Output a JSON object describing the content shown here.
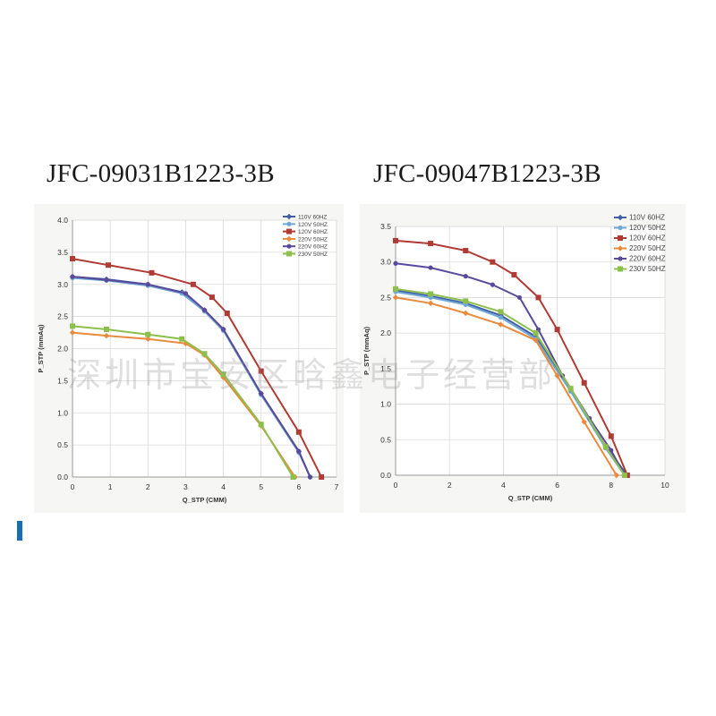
{
  "watermark": "深圳市宝安区晗鑫电子经营部",
  "chart_data": [
    {
      "type": "line",
      "title": "JFC-09031B1223-3B",
      "xlabel": "Q_STP (CMM)",
      "ylabel": "P_STP (mmAq)",
      "xlim": [
        0,
        7
      ],
      "ylim": [
        0,
        4
      ],
      "xticks": [
        0,
        1,
        2,
        3,
        4,
        5,
        6,
        7
      ],
      "yticks": [
        0.0,
        0.5,
        1.0,
        1.5,
        2.0,
        2.5,
        3.0,
        3.5,
        4.0
      ],
      "grid": true,
      "legend_position": "top-right",
      "series": [
        {
          "name": "110V 60HZ",
          "color": "#3f5ea8",
          "x": [
            0,
            0.9,
            2.0,
            2.9,
            3.5,
            4.0,
            5.0,
            6.0,
            6.3
          ],
          "y": [
            3.12,
            3.08,
            3.0,
            2.88,
            2.6,
            2.3,
            1.3,
            0.4,
            0.0
          ]
        },
        {
          "name": "120V 50HZ",
          "color": "#6fa8d6",
          "x": [
            0,
            0.9,
            2.0,
            2.9,
            3.5,
            4.0,
            5.0,
            6.0,
            6.3
          ],
          "y": [
            3.1,
            3.06,
            2.98,
            2.86,
            2.58,
            2.28,
            1.28,
            0.38,
            0.0
          ]
        },
        {
          "name": "120V 60HZ",
          "color": "#b03a34",
          "x": [
            0,
            0.95,
            2.1,
            3.2,
            3.7,
            4.1,
            5.0,
            6.0,
            6.6
          ],
          "y": [
            3.4,
            3.3,
            3.18,
            3.0,
            2.8,
            2.55,
            1.65,
            0.7,
            0.0
          ]
        },
        {
          "name": "220V 50HZ",
          "color": "#ea8a3c",
          "x": [
            0,
            0.9,
            2.0,
            3.0,
            3.5,
            4.0,
            5.0,
            5.9
          ],
          "y": [
            2.25,
            2.2,
            2.15,
            2.08,
            1.9,
            1.55,
            0.8,
            0.0
          ]
        },
        {
          "name": "220V 60HZ",
          "color": "#5a4a9c",
          "x": [
            0,
            0.9,
            2.0,
            3.0,
            3.5,
            4.0,
            5.0,
            6.0,
            6.3
          ],
          "y": [
            3.12,
            3.07,
            3.0,
            2.86,
            2.6,
            2.3,
            1.3,
            0.4,
            0.0
          ]
        },
        {
          "name": "230V 50HZ",
          "color": "#8cbf4b",
          "x": [
            0,
            0.9,
            2.0,
            2.9,
            3.5,
            4.0,
            5.0,
            5.85
          ],
          "y": [
            2.35,
            2.3,
            2.22,
            2.15,
            1.92,
            1.6,
            0.82,
            0.0
          ]
        }
      ]
    },
    {
      "type": "line",
      "title": "JFC-09047B1223-3B",
      "xlabel": "Q_STP (CMM)",
      "ylabel": "P_STP (mmAq)",
      "xlim": [
        0,
        10
      ],
      "ylim": [
        0,
        3.5
      ],
      "xticks": [
        0,
        2,
        4,
        6,
        8,
        10
      ],
      "yticks": [
        0.0,
        0.5,
        1.0,
        1.5,
        2.0,
        2.5,
        3.0,
        3.5
      ],
      "grid": true,
      "legend_position": "top-right",
      "series": [
        {
          "name": "110V 60HZ",
          "color": "#3f5ea8",
          "x": [
            0,
            1.3,
            2.6,
            3.9,
            5.2,
            6.5,
            7.8,
            8.6
          ],
          "y": [
            2.6,
            2.52,
            2.42,
            2.25,
            1.95,
            1.2,
            0.4,
            0.0
          ]
        },
        {
          "name": "120V 50HZ",
          "color": "#6fa8d6",
          "x": [
            0,
            1.3,
            2.6,
            3.9,
            5.2,
            6.5,
            7.8,
            8.5
          ],
          "y": [
            2.58,
            2.5,
            2.4,
            2.22,
            1.92,
            1.18,
            0.38,
            0.0
          ]
        },
        {
          "name": "120V 60HZ",
          "color": "#b03a34",
          "x": [
            0,
            1.3,
            2.6,
            3.6,
            4.4,
            5.3,
            6.0,
            7.0,
            8.0,
            8.6
          ],
          "y": [
            3.3,
            3.26,
            3.16,
            3.0,
            2.82,
            2.5,
            2.05,
            1.3,
            0.55,
            0.0
          ]
        },
        {
          "name": "220V 50HZ",
          "color": "#ea8a3c",
          "x": [
            0,
            1.3,
            2.6,
            3.9,
            5.2,
            6.0,
            7.0,
            8.2
          ],
          "y": [
            2.5,
            2.42,
            2.28,
            2.12,
            1.9,
            1.4,
            0.75,
            0.0
          ]
        },
        {
          "name": "220V 60HZ",
          "color": "#5a4a9c",
          "x": [
            0,
            1.3,
            2.6,
            3.6,
            4.6,
            5.3,
            6.2,
            7.2,
            8.0,
            8.5
          ],
          "y": [
            2.98,
            2.92,
            2.8,
            2.68,
            2.5,
            2.05,
            1.4,
            0.8,
            0.35,
            0.0
          ]
        },
        {
          "name": "230V 50HZ",
          "color": "#8cbf4b",
          "x": [
            0,
            1.3,
            2.6,
            3.9,
            5.2,
            6.5,
            7.8,
            8.5
          ],
          "y": [
            2.62,
            2.55,
            2.45,
            2.3,
            2.0,
            1.22,
            0.4,
            0.0
          ]
        }
      ]
    }
  ]
}
